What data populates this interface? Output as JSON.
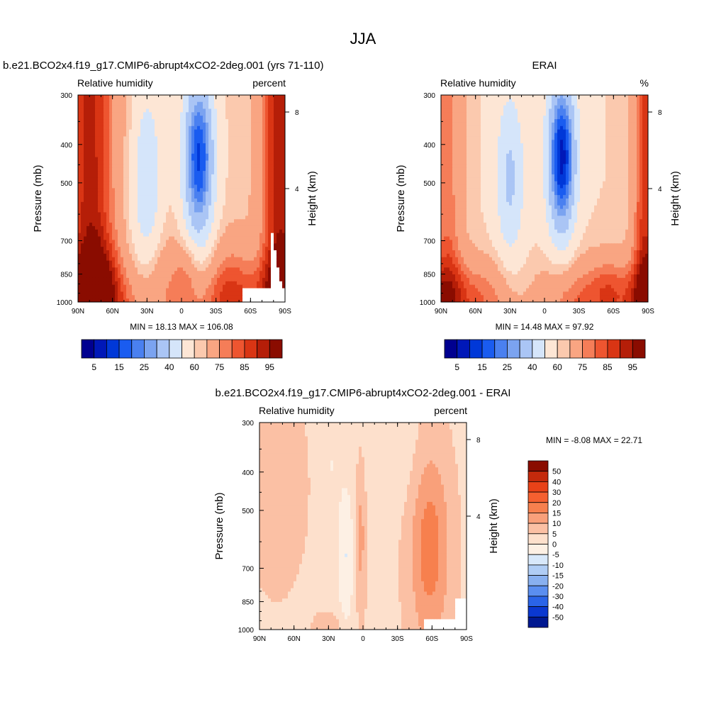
{
  "figure": {
    "title": "JJA"
  },
  "chart_data": [
    {
      "type": "heatmap",
      "case_title": "b.e21.BCO2x4.f19_g17.CMIP6-abrupt4xCO2-2deg.001 (yrs 71-110)",
      "left_label": "Relative humidity",
      "right_label": "percent",
      "xlabel": "",
      "ylabel": "Pressure (mb)",
      "y2label": "Height (km)",
      "x_ticks": [
        "90N",
        "60N",
        "30N",
        "0",
        "30S",
        "60S",
        "90S"
      ],
      "y_ticks": [
        "300",
        "400",
        "500",
        "700",
        "850",
        "1000"
      ],
      "y2_ticks": [
        "8",
        "4"
      ],
      "stats_text": "MIN = 18.13 MAX = 106.08",
      "colorbar_labels": [
        "5",
        "15",
        "25",
        "40",
        "60",
        "75",
        "85",
        "95"
      ],
      "colorbar_colors": [
        "#000090",
        "#0018b8",
        "#0038d8",
        "#1a5cf0",
        "#4a80f0",
        "#7ba3f0",
        "#aac5f5",
        "#d5e5fa",
        "#fde6d5",
        "#fbc9ae",
        "#f9a582",
        "#f57d58",
        "#ee5530",
        "#d93514",
        "#b51e08",
        "#8a0c00"
      ],
      "max_value": 106.08,
      "min_value": 18.13
    },
    {
      "type": "heatmap",
      "case_title": "ERAI",
      "left_label": "Relative humidity",
      "right_label": "%",
      "xlabel": "",
      "ylabel": "Pressure (mb)",
      "y2label": "Height (km)",
      "x_ticks": [
        "90N",
        "60N",
        "30N",
        "0",
        "30S",
        "60S",
        "90S"
      ],
      "y_ticks": [
        "300",
        "400",
        "500",
        "700",
        "850",
        "1000"
      ],
      "y2_ticks": [
        "8",
        "4"
      ],
      "stats_text": "MIN = 14.48 MAX = 97.92",
      "colorbar_labels": [
        "5",
        "15",
        "25",
        "40",
        "60",
        "75",
        "85",
        "95"
      ],
      "colorbar_colors": [
        "#000090",
        "#0018b8",
        "#0038d8",
        "#1a5cf0",
        "#4a80f0",
        "#7ba3f0",
        "#aac5f5",
        "#d5e5fa",
        "#fde6d5",
        "#fbc9ae",
        "#f9a582",
        "#f57d58",
        "#ee5530",
        "#d93514",
        "#b51e08",
        "#8a0c00"
      ],
      "max_value": 97.92,
      "min_value": 14.48
    },
    {
      "type": "heatmap",
      "case_title": "b.e21.BCO2x4.f19_g17.CMIP6-abrupt4xCO2-2deg.001 - ERAI",
      "left_label": "Relative humidity",
      "right_label": "percent",
      "xlabel": "",
      "ylabel": "Pressure (mb)",
      "y2label": "Height (km)",
      "x_ticks": [
        "90N",
        "60N",
        "30N",
        "0",
        "30S",
        "60S",
        "90S"
      ],
      "y_ticks": [
        "300",
        "400",
        "500",
        "700",
        "850",
        "1000"
      ],
      "y2_ticks": [
        "8",
        "4"
      ],
      "stats_text": "MIN = -8.08 MAX = 22.71",
      "colorbar_labels": [
        "50",
        "40",
        "30",
        "20",
        "15",
        "10",
        "5",
        "0",
        "-5",
        "-10",
        "-15",
        "-20",
        "-30",
        "-40",
        "-50"
      ],
      "colorbar_colors": [
        "#8a0c00",
        "#c42a0c",
        "#e84218",
        "#f56030",
        "#f7804e",
        "#f9a07a",
        "#fbc0a4",
        "#fde0cc",
        "#fdf0e4",
        "#d8e8fa",
        "#b0cdf5",
        "#88b0f0",
        "#5a8ef0",
        "#2a64e8",
        "#0a38d0",
        "#001890"
      ],
      "max_value": 22.71,
      "min_value": -8.08
    }
  ]
}
